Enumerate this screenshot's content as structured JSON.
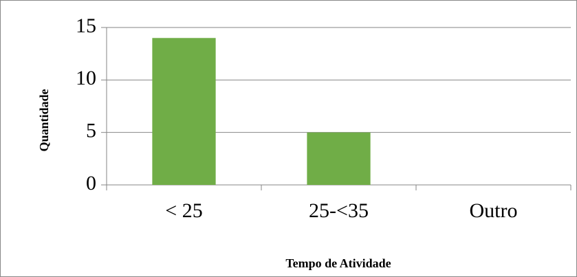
{
  "chart_data": {
    "type": "bar",
    "categories": [
      "< 25",
      "25-<35",
      "Outro"
    ],
    "values": [
      14,
      5,
      0
    ],
    "color": "#70ad47",
    "ylim": [
      0,
      15
    ],
    "yticks": [
      0,
      5,
      10,
      15
    ],
    "grid": true,
    "xlabel": "Tempo de Atividade",
    "ylabel": "Quantidade"
  }
}
